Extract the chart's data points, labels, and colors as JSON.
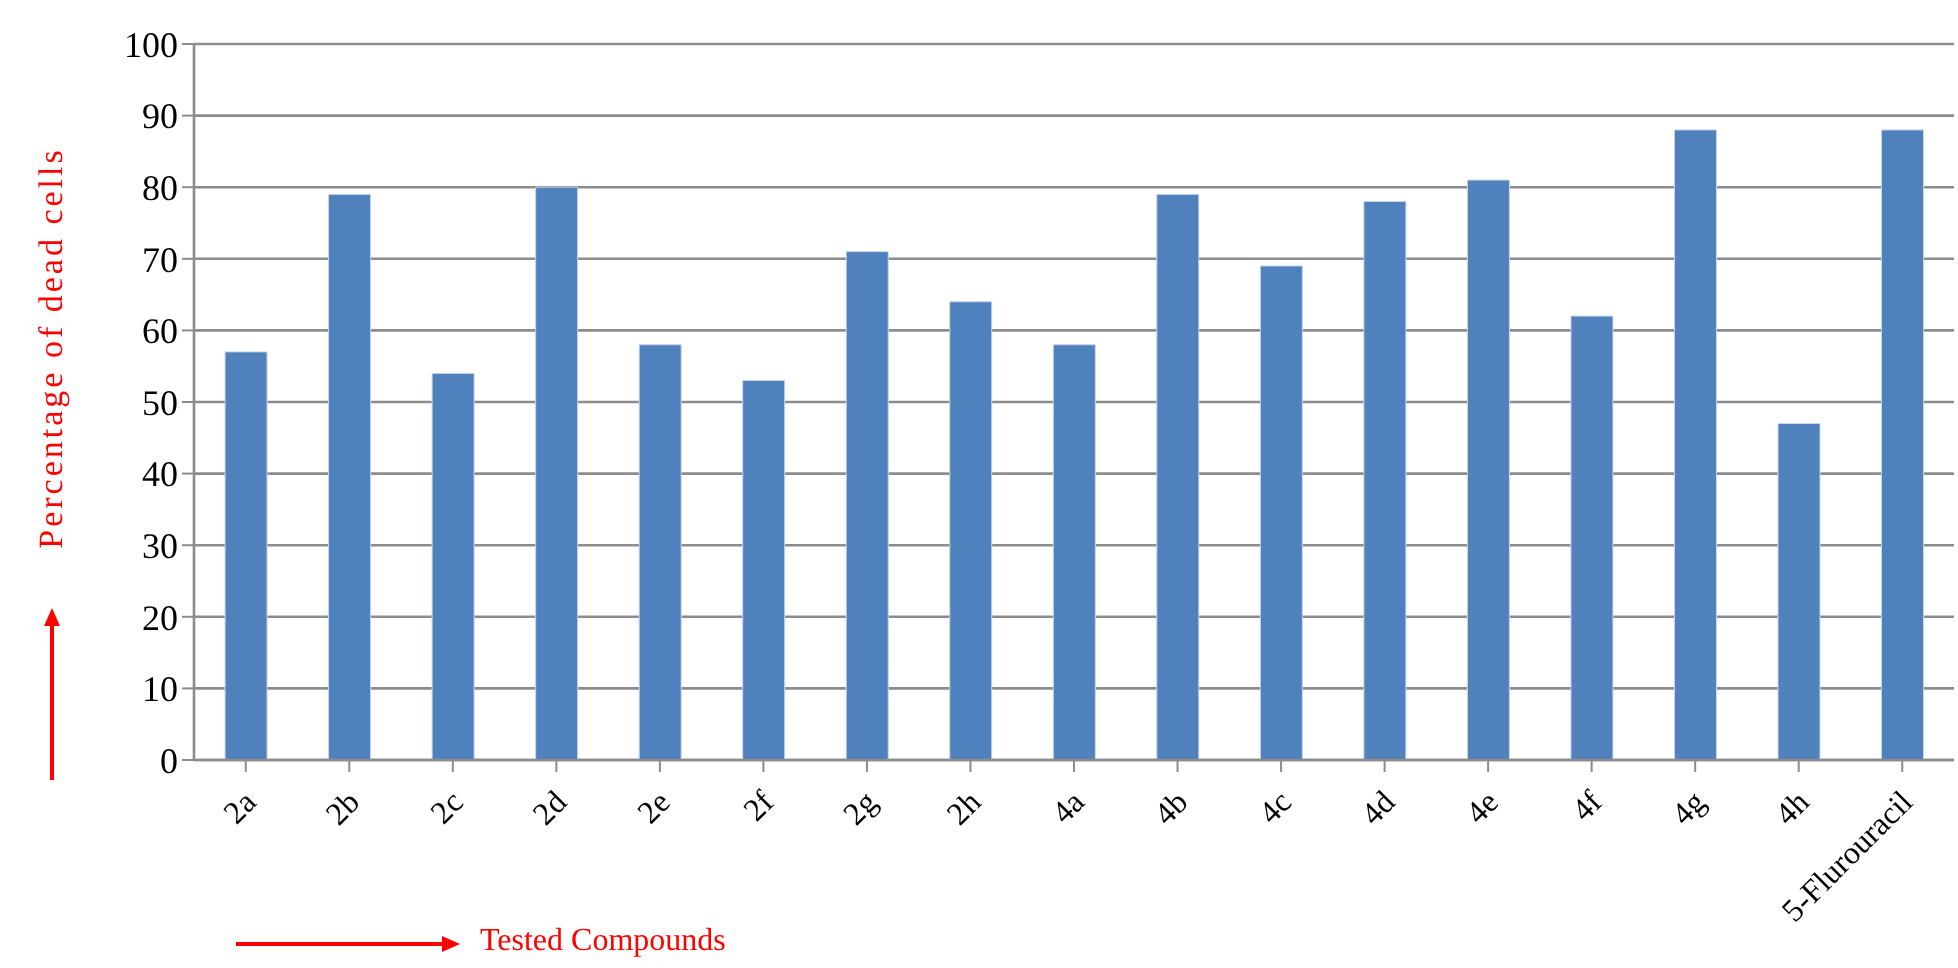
{
  "chart_data": {
    "type": "bar",
    "xlabel": "Tested Compounds",
    "ylabel": "Percentage of dead cells",
    "categories": [
      "2a",
      "2b",
      "2c",
      "2d",
      "2e",
      "2f",
      "2g",
      "2h",
      "4a",
      "4b",
      "4c",
      "4d",
      "4e",
      "4f",
      "4g",
      "4h",
      "5-Flurouracil"
    ],
    "values": [
      57,
      79,
      54,
      80,
      58,
      53,
      71,
      64,
      58,
      79,
      69,
      78,
      81,
      62,
      88,
      47,
      88
    ],
    "color": "#4f81bd",
    "ylim": [
      0,
      100
    ],
    "yticks": [
      0,
      10,
      20,
      30,
      40,
      50,
      60,
      70,
      80,
      90,
      100
    ],
    "grid": "y",
    "legend": false
  }
}
